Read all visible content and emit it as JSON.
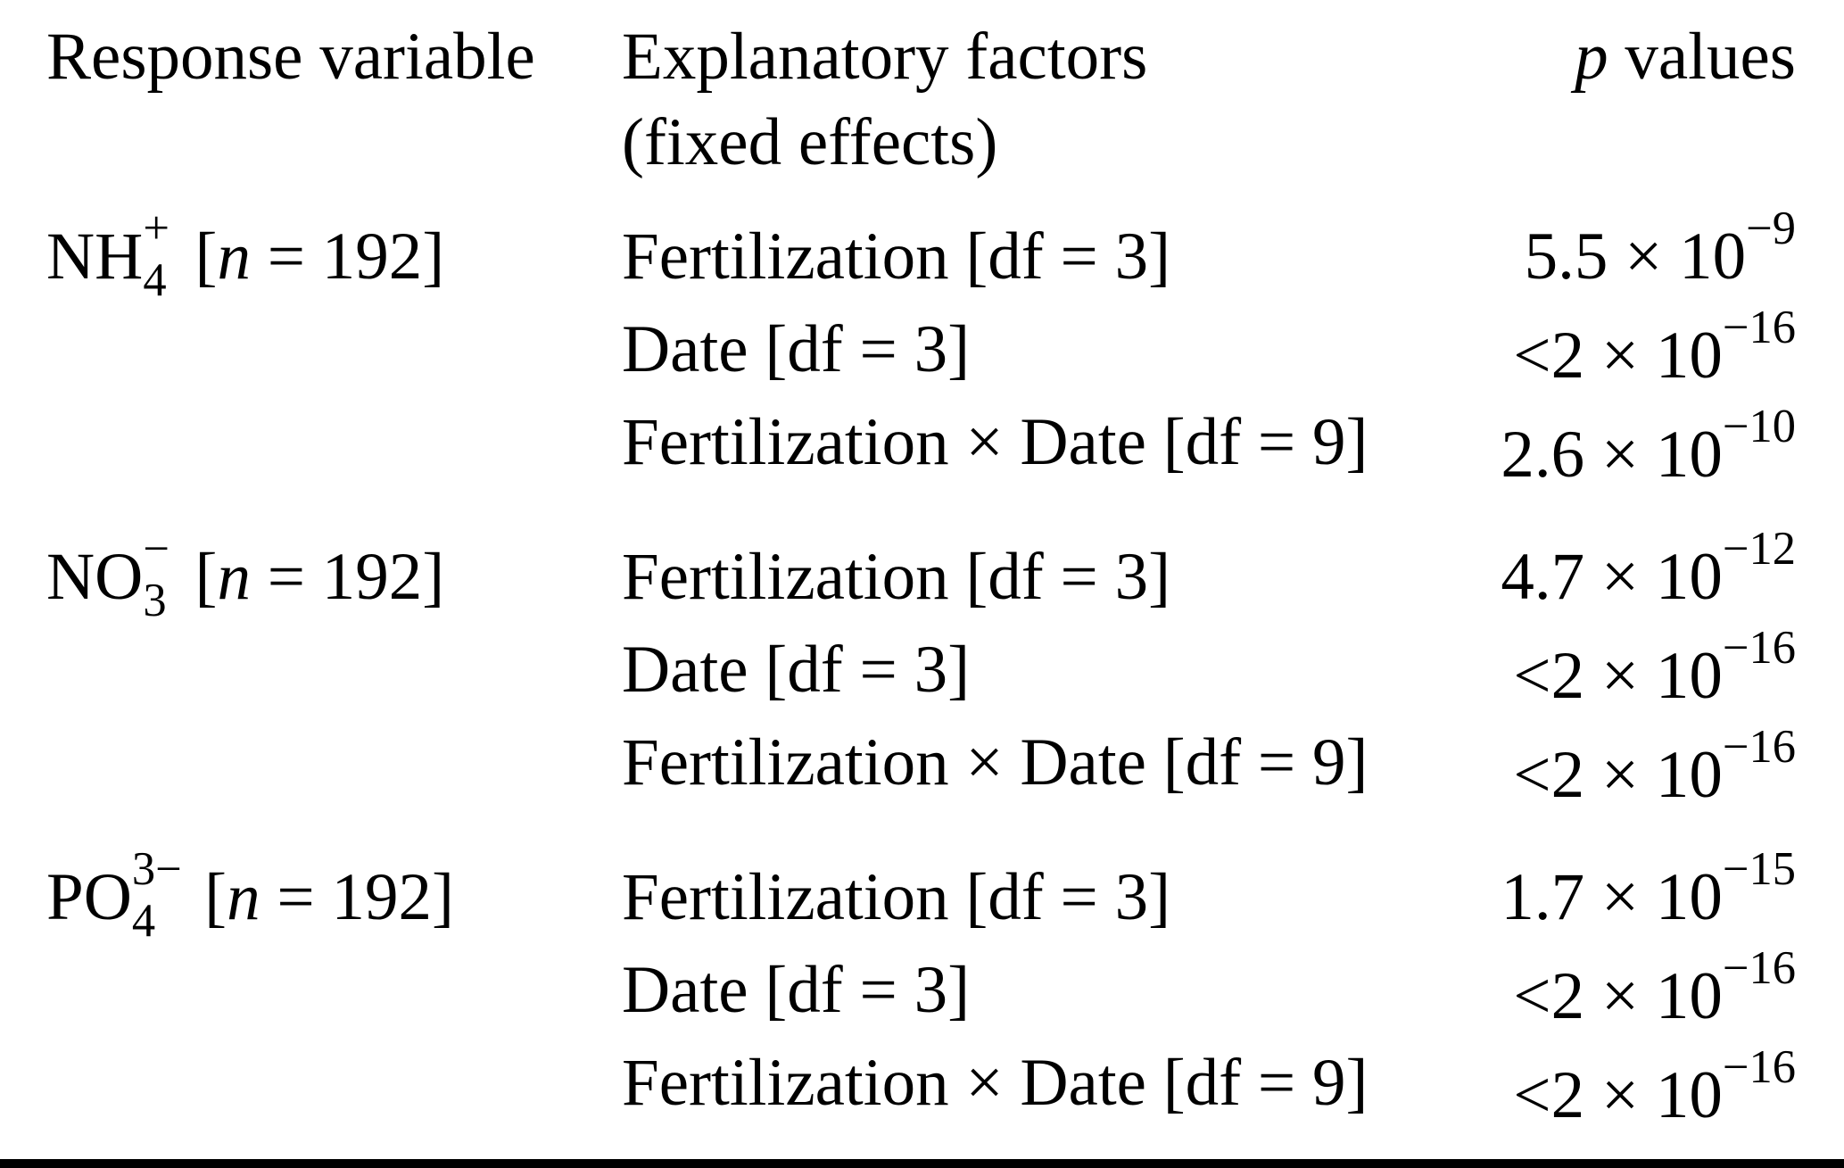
{
  "table": {
    "header": {
      "col1": "Response variable",
      "col2_line1": "Explanatory factors",
      "col2_line2": "(fixed effects)",
      "col3_var": "p",
      "col3_rest": " values"
    },
    "groups": [
      {
        "formula_base": "NH",
        "formula_sup": "+",
        "formula_sub": "4",
        "sample_prefix": "[",
        "sample_var": "n",
        "sample_suffix": " = 192]",
        "rows": [
          {
            "factor": "Fertilization [df = 3]",
            "p_prefix": "5.5 × ",
            "p_base": "10",
            "p_exp": "−9"
          },
          {
            "factor": "Date [df = 3]",
            "p_prefix": "<2 × ",
            "p_base": "10",
            "p_exp": "−16"
          },
          {
            "factor": "Fertilization × Date [df = 9]",
            "p_prefix": "2.6 × ",
            "p_base": "10",
            "p_exp": "−10"
          }
        ]
      },
      {
        "formula_base": "NO",
        "formula_sup": "−",
        "formula_sub": "3",
        "sample_prefix": "[",
        "sample_var": "n",
        "sample_suffix": " = 192]",
        "rows": [
          {
            "factor": "Fertilization [df = 3]",
            "p_prefix": "4.7 × ",
            "p_base": "10",
            "p_exp": "−12"
          },
          {
            "factor": "Date [df = 3]",
            "p_prefix": "<2 × ",
            "p_base": "10",
            "p_exp": "−16"
          },
          {
            "factor": "Fertilization × Date [df = 9]",
            "p_prefix": "<2 × ",
            "p_base": "10",
            "p_exp": "−16"
          }
        ]
      },
      {
        "formula_base": "PO",
        "formula_sup": "3−",
        "formula_sub": "4",
        "sample_prefix": "[",
        "sample_var": "n",
        "sample_suffix": " = 192]",
        "rows": [
          {
            "factor": "Fertilization [df = 3]",
            "p_prefix": "1.7 × ",
            "p_base": "10",
            "p_exp": "−15"
          },
          {
            "factor": "Date [df = 3]",
            "p_prefix": "<2 × ",
            "p_base": "10",
            "p_exp": "−16"
          },
          {
            "factor": "Fertilization × Date [df = 9]",
            "p_prefix": "<2 × ",
            "p_base": "10",
            "p_exp": "−16"
          }
        ]
      }
    ]
  }
}
